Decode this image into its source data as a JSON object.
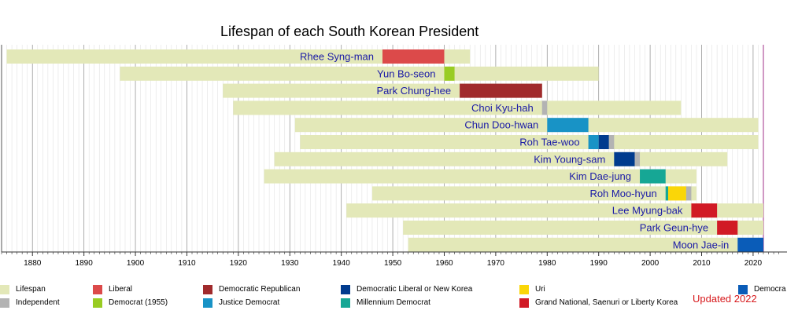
{
  "chart_data": {
    "type": "timeline",
    "title": "Lifespan of each South Korean President",
    "xlim": [
      1874,
      2022
    ],
    "x_ticks": [
      1880,
      1890,
      1900,
      1910,
      1920,
      1930,
      1940,
      1950,
      1960,
      1970,
      1980,
      1990,
      2000,
      2010,
      2020
    ],
    "grid": true,
    "legend_position": "bottom",
    "series": [
      {
        "name": "Rhee Syng-man",
        "lifespan": [
          1875,
          1965
        ],
        "terms": [
          {
            "party": "Liberal",
            "start": 1948,
            "end": 1960
          }
        ]
      },
      {
        "name": "Yun Bo-seon",
        "lifespan": [
          1897,
          1990
        ],
        "terms": [
          {
            "party": "Democrat (1955)",
            "start": 1960,
            "end": 1962
          }
        ]
      },
      {
        "name": "Park Chung-hee",
        "lifespan": [
          1917,
          1979
        ],
        "terms": [
          {
            "party": "Democratic Republican",
            "start": 1963,
            "end": 1979
          }
        ]
      },
      {
        "name": "Choi Kyu-hah",
        "lifespan": [
          1919,
          2006
        ],
        "terms": [
          {
            "party": "Independent",
            "start": 1979,
            "end": 1980
          }
        ]
      },
      {
        "name": "Chun Doo-hwan",
        "lifespan": [
          1931,
          2021
        ],
        "terms": [
          {
            "party": "Justice Democrat",
            "start": 1980,
            "end": 1988
          }
        ]
      },
      {
        "name": "Roh Tae-woo",
        "lifespan": [
          1932,
          2021
        ],
        "terms": [
          {
            "party": "Justice Democrat",
            "start": 1988,
            "end": 1990
          },
          {
            "party": "Democratic Liberal or New Korea",
            "start": 1990,
            "end": 1992
          },
          {
            "party": "Independent",
            "start": 1992,
            "end": 1993
          }
        ]
      },
      {
        "name": "Kim Young-sam",
        "lifespan": [
          1927,
          2015
        ],
        "terms": [
          {
            "party": "Democratic Liberal or New Korea",
            "start": 1993,
            "end": 1997
          },
          {
            "party": "Independent",
            "start": 1997,
            "end": 1998
          }
        ]
      },
      {
        "name": "Kim Dae-jung",
        "lifespan": [
          1925,
          2009
        ],
        "terms": [
          {
            "party": "Millennium Democrat",
            "start": 1998,
            "end": 2003
          }
        ]
      },
      {
        "name": "Roh Moo-hyun",
        "lifespan": [
          1946,
          2009
        ],
        "terms": [
          {
            "party": "Millennium Democrat",
            "start": 2003,
            "end": 2003.5
          },
          {
            "party": "Uri",
            "start": 2003.5,
            "end": 2007
          },
          {
            "party": "Independent",
            "start": 2007,
            "end": 2008
          }
        ]
      },
      {
        "name": "Lee Myung-bak",
        "lifespan": [
          1941,
          2022
        ],
        "terms": [
          {
            "party": "Grand National, Saenuri or Liberty Korea",
            "start": 2008,
            "end": 2013
          }
        ]
      },
      {
        "name": "Park Geun-hye",
        "lifespan": [
          1952,
          2022
        ],
        "terms": [
          {
            "party": "Grand National, Saenuri or Liberty Korea",
            "start": 2013,
            "end": 2017
          }
        ]
      },
      {
        "name": "Moon Jae-in",
        "lifespan": [
          1953,
          2022
        ],
        "terms": [
          {
            "party": "Democratic",
            "start": 2017,
            "end": 2022
          }
        ]
      }
    ],
    "legend": [
      {
        "label": "Lifespan",
        "color": "#e3e8b8"
      },
      {
        "label": "Independent",
        "color": "#b3b3b3"
      },
      {
        "label": "Liberal",
        "color": "#dc4a4a"
      },
      {
        "label": "Democrat (1955)",
        "color": "#99cc22"
      },
      {
        "label": "Democratic Republican",
        "color": "#a02a2c"
      },
      {
        "label": "Justice Democrat",
        "color": "#1893c6"
      },
      {
        "label": "Democratic Liberal or New Korea",
        "color": "#003b8e"
      },
      {
        "label": "Millennium Democrat",
        "color": "#16a795"
      },
      {
        "label": "Uri",
        "color": "#fad608"
      },
      {
        "label": "Grand National, Saenuri or Liberty Korea",
        "color": "#d11a25"
      },
      {
        "label": "Democra",
        "color": "#0a5cb8"
      }
    ],
    "note": "Updated 2022"
  }
}
